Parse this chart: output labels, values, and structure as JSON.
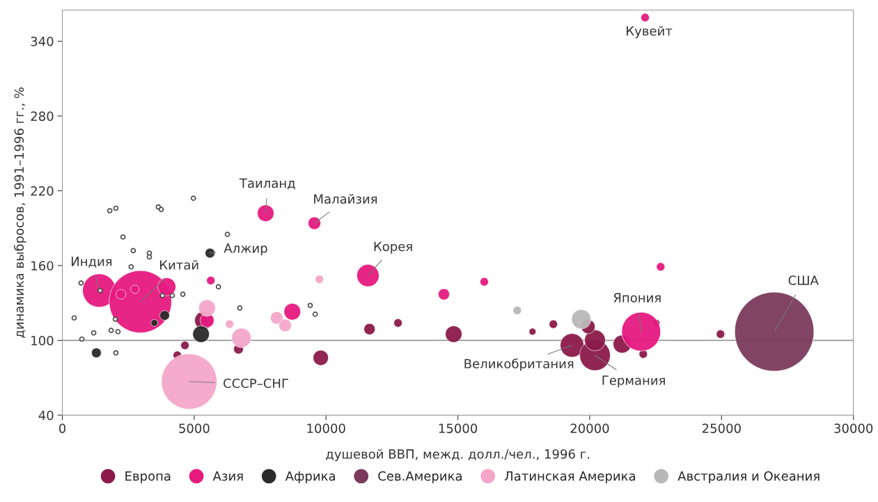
{
  "chart_data": {
    "type": "bubble",
    "xlabel": "душевой ВВП, межд. долл./чел., 1996 г.",
    "ylabel": "динамика выбросов, 1991–1996 гг., %",
    "xlim": [
      0,
      30000
    ],
    "xticks": [
      0,
      5000,
      10000,
      15000,
      20000,
      25000,
      30000
    ],
    "ylim": [
      40,
      365
    ],
    "yticks": [
      40,
      100,
      160,
      220,
      280,
      340
    ],
    "grid": false,
    "legend": "bottom",
    "ref_lines": [
      {
        "axis": "y",
        "value": 100,
        "color": "#888888"
      }
    ],
    "series": [
      {
        "name": "Европа",
        "color": "#8b1a4a",
        "x": [
          4650,
          5360,
          6680,
          9800,
          11650,
          12730,
          14840,
          17830,
          18620,
          19330,
          20200,
          20200,
          19940,
          21230,
          22030,
          22530,
          24960,
          4360
        ],
        "values": [
          96,
          116,
          93,
          86,
          109,
          114,
          105,
          107,
          113,
          96,
          88,
          100,
          111,
          97,
          89,
          114,
          105,
          88
        ],
        "sizes": [
          0.011,
          0.052,
          0.015,
          0.037,
          0.02,
          0.011,
          0.044,
          0.0077,
          0.011,
          0.089,
          0.149,
          0.069,
          0.031,
          0.052,
          0.011,
          0.0077,
          0.011,
          0.011
        ]
      },
      {
        "name": "Азия",
        "color": "#e6197f",
        "x": [
          1400,
          2960,
          3960,
          2220,
          2750,
          7710,
          9560,
          11590,
          5630,
          8720,
          14470,
          16000,
          22690,
          22100,
          21950,
          5490
        ],
        "values": [
          140,
          131,
          143,
          137,
          141,
          202,
          194,
          152,
          148,
          123,
          137,
          147,
          159,
          359,
          107,
          116
        ],
        "sizes": [
          0.177,
          0.62,
          0.052,
          0.015,
          0.011,
          0.044,
          0.025,
          0.079,
          0.011,
          0.044,
          0.02,
          0.011,
          0.011,
          0.011,
          0.241,
          0.031
        ]
      },
      {
        "name": "Африка",
        "color": "#2a2a2a",
        "x": [
          5600,
          1290,
          3880,
          3490,
          5260
        ],
        "values": [
          170,
          90,
          120,
          114,
          105
        ],
        "sizes": [
          0.015,
          0.015,
          0.015,
          0.0077,
          0.044
        ]
      },
      {
        "name": "Сев.Америка",
        "color": "#7a3a5c",
        "x": [
          27000
        ],
        "values": [
          107
        ],
        "sizes": [
          1
        ]
      },
      {
        "name": "Латинская Америка",
        "color": "#f4a6c8",
        "x": [
          5490,
          6790,
          6340,
          8130,
          8450,
          9750,
          4810
        ],
        "values": [
          126,
          102,
          113,
          118,
          112,
          149,
          67
        ],
        "sizes": [
          0.044,
          0.06,
          0.011,
          0.025,
          0.025,
          0.011,
          0.49
        ]
      },
      {
        "name": "Австралия и Океания",
        "color": "#b8b8b8",
        "x": [
          19680,
          17250
        ],
        "values": [
          117,
          124
        ],
        "sizes": [
          0.06,
          0.011
        ]
      },
      {
        "color": "#404040",
        "x": [
          1800,
          2030,
          3640,
          3750,
          4970,
          2300,
          6260,
          2690,
          3300,
          3300,
          2610,
          710,
          1430,
          5920,
          4570,
          4170,
          3800,
          450,
          1190,
          1850,
          2110,
          740,
          2030,
          6730,
          2010,
          9400,
          9590
        ],
        "values": [
          204,
          206,
          207,
          205,
          214,
          183,
          185,
          172,
          170,
          167,
          159,
          146,
          140,
          143,
          137,
          136,
          136,
          118,
          106,
          108,
          107,
          101,
          90,
          126,
          117,
          128,
          121
        ],
        "sizes": [
          0.0028,
          0.0028,
          0.0028,
          0.0028,
          0.0028,
          0.0028,
          0.0028,
          0.0028,
          0.0028,
          0.0028,
          0.0028,
          0.0028,
          0.0028,
          0.0028,
          0.0028,
          0.0028,
          0.0028,
          0.0028,
          0.0028,
          0.0028,
          0.0028,
          0.0028,
          0.0028,
          0.0028,
          0.0028,
          0.0028,
          0.0028
        ]
      }
    ],
    "annotations": [
      {
        "text": "Кувейт",
        "x": 22100,
        "y": 359
      },
      {
        "text": "Таиланд",
        "x": 7710,
        "y": 202
      },
      {
        "text": "Малайзия",
        "x": 9560,
        "y": 194
      },
      {
        "text": "Корея",
        "x": 11590,
        "y": 152
      },
      {
        "text": "Индия",
        "x": 1400,
        "y": 140
      },
      {
        "text": "Китай",
        "x": 2960,
        "y": 131
      },
      {
        "text": "Алжир",
        "x": 5600,
        "y": 170
      },
      {
        "text": "СССР–СНГ",
        "x": 4810,
        "y": 67
      },
      {
        "text": "США",
        "x": 27000,
        "y": 107
      },
      {
        "text": "Япония",
        "x": 21950,
        "y": 107
      },
      {
        "text": "Великобритания",
        "x": 19330,
        "y": 96
      },
      {
        "text": "Германия",
        "x": 20200,
        "y": 88
      }
    ]
  }
}
